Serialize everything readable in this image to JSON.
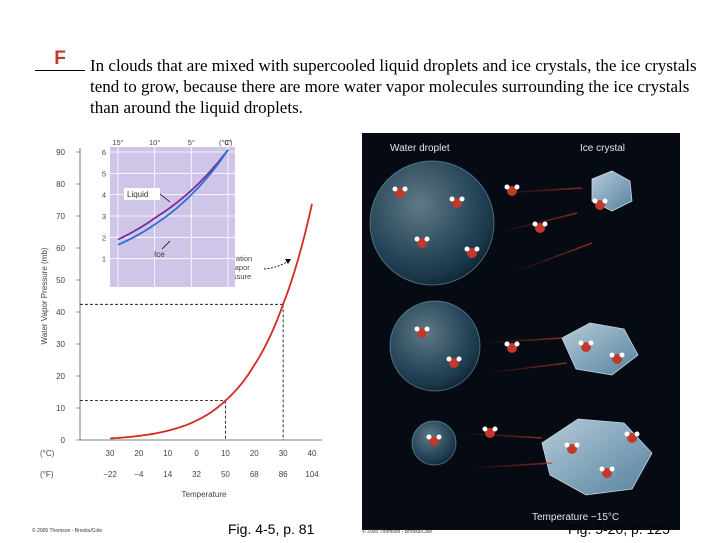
{
  "question": {
    "answer": "F",
    "statement": "In clouds that are mixed with supercooled liquid droplets and ice crystals, the ice crystals tend to grow, because there are more water vapor molecules surrounding the ice crystals than around the liquid droplets."
  },
  "figure_left": {
    "caption": "Fig. 4-5, p. 81",
    "copyright": "© 2005 Thomson - Brooks/Cole",
    "ylabel": "Water Vapor Pressure (mb)",
    "xlabel": "Temperature",
    "unit_c": "(°C)",
    "unit_f": "(°F)",
    "celsius_ticks": [
      "30",
      "20",
      "10",
      "0",
      "10",
      "20",
      "30",
      "40"
    ],
    "fahrenheit_ticks": [
      "−22",
      "−4",
      "14",
      "32",
      "50",
      "68",
      "86",
      "104"
    ],
    "y_ticks": [
      "0",
      "10",
      "20",
      "30",
      "40",
      "50",
      "60",
      "70",
      "80",
      "90"
    ],
    "sat_label": [
      "Saturation",
      "vapor",
      "pressure"
    ],
    "inset": {
      "top_ticks": [
        "15°",
        "10°",
        "5°",
        "0°"
      ],
      "top_unit": "(°C)",
      "y_ticks": [
        "1",
        "2",
        "3",
        "4",
        "5",
        "6"
      ],
      "liquid_label": "Liquid",
      "ice_label": "Ice"
    }
  },
  "figure_right": {
    "caption": "Fig. 5-20, p. 125",
    "copyright": "© 2005 Thomson - Brooks/Cole",
    "label_droplet": "Water droplet",
    "label_crystal": "Ice crystal",
    "label_temp": "Temperature −15°C"
  },
  "chart_data": {
    "type": "line",
    "xlabel": "Temperature",
    "ylabel": "Water Vapor Pressure (mb)",
    "x_celsius": [
      -30,
      -20,
      -10,
      0,
      10,
      20,
      30,
      40
    ],
    "x_fahrenheit": [
      -22,
      -4,
      14,
      32,
      50,
      68,
      86,
      104
    ],
    "xlim": [
      -30,
      40
    ],
    "ylim": [
      0,
      90
    ],
    "series": [
      {
        "name": "Saturation vapor pressure",
        "x": [
          -30,
          -20,
          -10,
          0,
          10,
          20,
          30,
          40
        ],
        "values": [
          0.5,
          1.3,
          2.9,
          6.1,
          12.3,
          23.4,
          42.4,
          73.8
        ]
      }
    ],
    "reference_lines": [
      {
        "x": 10,
        "y": 12.3
      },
      {
        "x": 30,
        "y": 42.4
      }
    ],
    "inset": {
      "type": "line",
      "top_axis_celsius": [
        -15,
        -10,
        -5,
        0
      ],
      "ylim": [
        0,
        6
      ],
      "series": [
        {
          "name": "Liquid",
          "x": [
            -15,
            -10,
            -5,
            0
          ],
          "values": [
            1.9,
            2.9,
            4.2,
            6.1
          ]
        },
        {
          "name": "Ice",
          "x": [
            -15,
            -10,
            -5,
            0
          ],
          "values": [
            1.65,
            2.6,
            4.0,
            6.1
          ]
        }
      ]
    }
  }
}
